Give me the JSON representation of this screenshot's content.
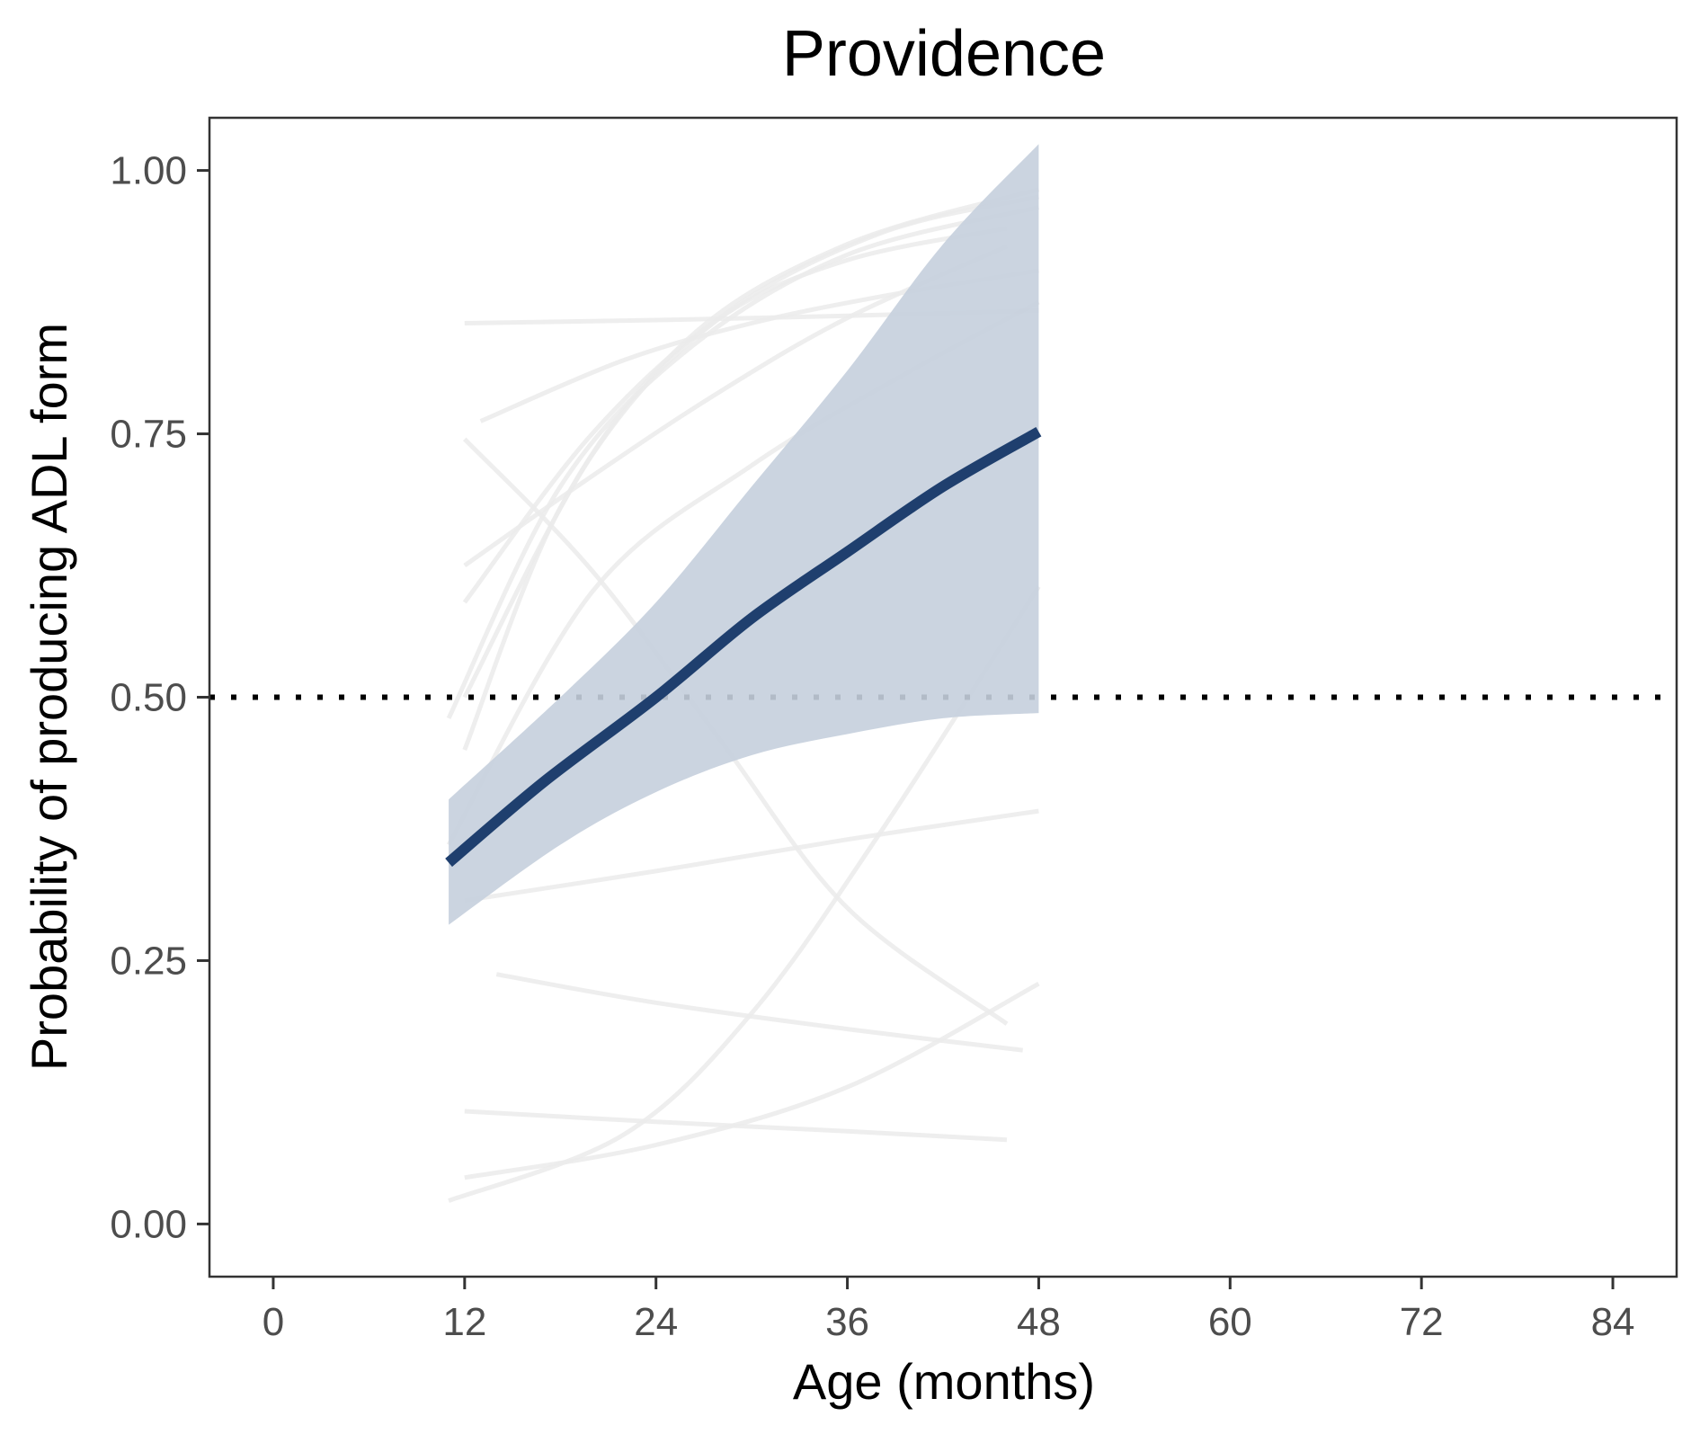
{
  "chart_data": {
    "type": "line",
    "title": "Providence",
    "xlabel": "Age (months)",
    "ylabel": "Probability of producing ADL form",
    "xlim": [
      -4,
      88
    ],
    "ylim": [
      -0.05,
      1.05
    ],
    "x_ticks": [
      0,
      12,
      24,
      36,
      48,
      60,
      72,
      84
    ],
    "x_tick_labels": [
      "0",
      "12",
      "24",
      "36",
      "48",
      "60",
      "72",
      "84"
    ],
    "y_ticks": [
      0,
      0.25,
      0.5,
      0.75,
      1.0
    ],
    "y_tick_labels": [
      "0.00",
      "0.25",
      "0.50",
      "0.75",
      "1.00"
    ],
    "grid": false,
    "legend": "none",
    "reference_line": {
      "y": 0.5,
      "style": "dotted",
      "color": "#000000"
    },
    "colors": {
      "mean_line": "#1f3f6e",
      "ribbon": "#c5cfdd",
      "individual_lines": "#ebebeb"
    },
    "mean_line": {
      "x": [
        11,
        17,
        24,
        30,
        36,
        42,
        48
      ],
      "y": [
        0.343,
        0.42,
        0.5,
        0.575,
        0.638,
        0.7,
        0.752
      ]
    },
    "ribbon": {
      "x": [
        11,
        18,
        24,
        30,
        36,
        42,
        48
      ],
      "upper": [
        0.403,
        0.5,
        0.59,
        0.7,
        0.81,
        0.93,
        1.025
      ],
      "lower": [
        0.284,
        0.36,
        0.41,
        0.445,
        0.465,
        0.48,
        0.485
      ]
    },
    "individual_series": [
      {
        "x": [
          12,
          24,
          36,
          48
        ],
        "y": [
          0.855,
          0.858,
          0.862,
          0.867
        ]
      },
      {
        "x": [
          13,
          22,
          30,
          38,
          48
        ],
        "y": [
          0.762,
          0.82,
          0.855,
          0.88,
          0.905
        ]
      },
      {
        "x": [
          12,
          20,
          28,
          36,
          46
        ],
        "y": [
          0.745,
          0.62,
          0.46,
          0.3,
          0.19
        ]
      },
      {
        "x": [
          12,
          20,
          28,
          36,
          46
        ],
        "y": [
          0.625,
          0.71,
          0.79,
          0.86,
          0.928
        ]
      },
      {
        "x": [
          12,
          20,
          28,
          36,
          46
        ],
        "y": [
          0.59,
          0.75,
          0.86,
          0.915,
          0.945
        ]
      },
      {
        "x": [
          12,
          20,
          28,
          38,
          48
        ],
        "y": [
          0.5,
          0.73,
          0.86,
          0.94,
          0.975
        ]
      },
      {
        "x": [
          11,
          18,
          26,
          36,
          48
        ],
        "y": [
          0.48,
          0.7,
          0.83,
          0.92,
          0.965
        ]
      },
      {
        "x": [
          12,
          18,
          26,
          36,
          48
        ],
        "y": [
          0.45,
          0.68,
          0.84,
          0.93,
          0.982
        ]
      },
      {
        "x": [
          11,
          20,
          30,
          40,
          48
        ],
        "y": [
          0.36,
          0.6,
          0.72,
          0.81,
          0.875
        ]
      },
      {
        "x": [
          12,
          24,
          36,
          48
        ],
        "y": [
          0.307,
          0.335,
          0.365,
          0.392
        ]
      },
      {
        "x": [
          14,
          24,
          36,
          47
        ],
        "y": [
          0.237,
          0.21,
          0.185,
          0.165
        ]
      },
      {
        "x": [
          12,
          24,
          36,
          46
        ],
        "y": [
          0.107,
          0.097,
          0.088,
          0.08
        ]
      },
      {
        "x": [
          12,
          24,
          36,
          48
        ],
        "y": [
          0.044,
          0.075,
          0.13,
          0.228
        ]
      },
      {
        "x": [
          11,
          22,
          30,
          38,
          48
        ],
        "y": [
          0.022,
          0.085,
          0.2,
          0.37,
          0.605
        ]
      }
    ]
  }
}
